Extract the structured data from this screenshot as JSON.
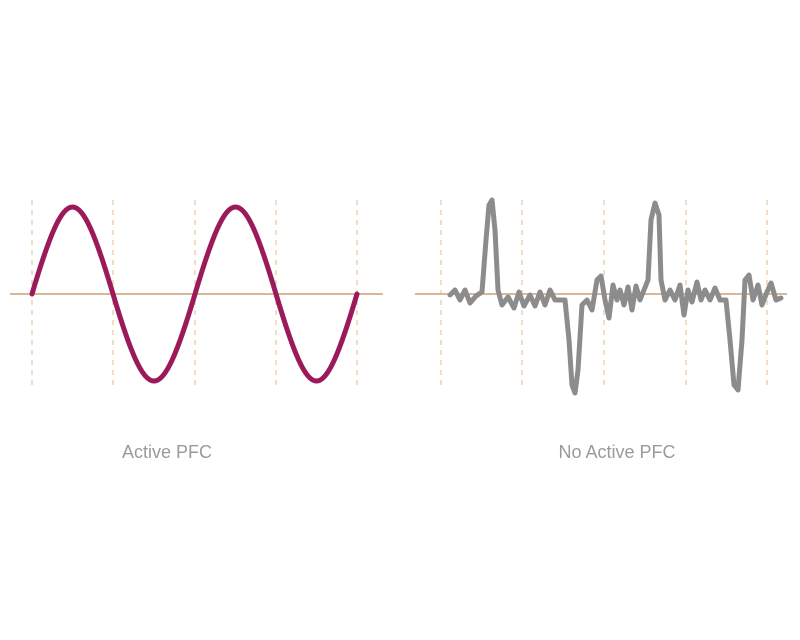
{
  "panels": [
    {
      "caption": "Active PFC"
    },
    {
      "caption": "No Active PFC"
    }
  ]
}
